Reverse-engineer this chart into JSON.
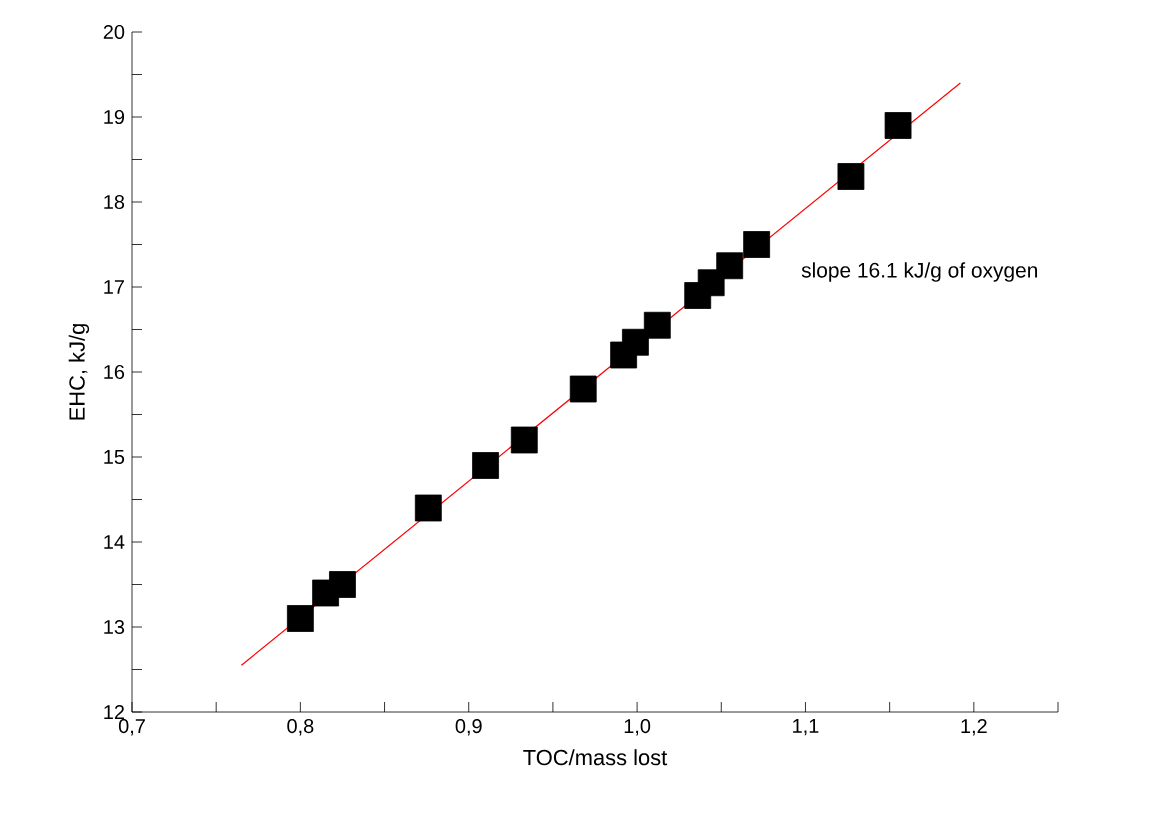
{
  "chart_data": {
    "type": "scatter",
    "xlabel": "TOC/mass lost",
    "ylabel": "EHC, kJ/g",
    "xlim": [
      0.7,
      1.25
    ],
    "ylim": [
      12,
      20
    ],
    "xticks": [
      {
        "value": 0.7,
        "label": "0,7"
      },
      {
        "value": 0.75,
        "label": null
      },
      {
        "value": 0.8,
        "label": "0,8"
      },
      {
        "value": 0.85,
        "label": null
      },
      {
        "value": 0.9,
        "label": "0,9"
      },
      {
        "value": 0.95,
        "label": null
      },
      {
        "value": 1.0,
        "label": "1,0"
      },
      {
        "value": 1.05,
        "label": null
      },
      {
        "value": 1.1,
        "label": "1,1"
      },
      {
        "value": 1.15,
        "label": null
      },
      {
        "value": 1.2,
        "label": "1,2"
      },
      {
        "value": 1.25,
        "label": null
      }
    ],
    "yticks": [
      12,
      {
        "value": 12.5,
        "label": null
      },
      13,
      {
        "value": 13.5,
        "label": null
      },
      14,
      {
        "value": 14.5,
        "label": null
      },
      15,
      {
        "value": 15.5,
        "label": null
      },
      16,
      {
        "value": 16.5,
        "label": null
      },
      17,
      {
        "value": 17.5,
        "label": null
      },
      18,
      {
        "value": 18.5,
        "label": null
      },
      19,
      {
        "value": 19.5,
        "label": null
      },
      20
    ],
    "marker": "square",
    "grid": false,
    "series": [
      {
        "color": "#000000",
        "x": [
          0.8,
          0.815,
          0.825,
          0.876,
          0.91,
          0.933,
          0.968,
          0.992,
          0.999,
          1.012,
          1.036,
          1.044,
          1.055,
          1.071,
          1.127,
          1.155
        ],
        "values": [
          13.1,
          13.4,
          13.5,
          14.4,
          14.9,
          15.2,
          15.8,
          16.2,
          16.35,
          16.55,
          16.9,
          17.05,
          17.25,
          17.5,
          18.3,
          18.9
        ]
      },
      {
        "type": "line",
        "color": "#ff0000",
        "marker": "none",
        "x": [
          0.765,
          1.192
        ],
        "values": [
          12.55,
          19.4
        ]
      }
    ],
    "annotations": [
      "slope 16.1 kJ/g of oxygen"
    ]
  }
}
